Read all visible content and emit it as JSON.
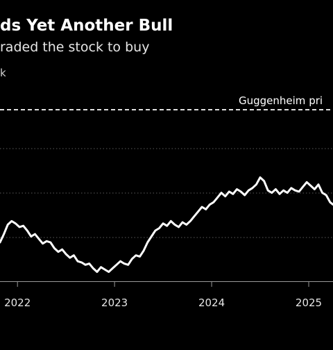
{
  "header": {
    "title": "ds Yet Another Bull",
    "subtitle": "raded the stock to buy",
    "unit": "k"
  },
  "chart_data": {
    "type": "line",
    "title": "ds Yet Another Bull",
    "subtitle": "raded the stock to buy",
    "xlabel": "",
    "ylabel": "",
    "x_ticks": [
      "2022",
      "2023",
      "2024",
      "2025"
    ],
    "xlim": [
      2021.82,
      2025.25
    ],
    "grid": true,
    "legend": "none",
    "series": [
      {
        "color": "#ffffff",
        "points": [
          [
            2021.82,
            0.3
          ],
          [
            2021.86,
            0.37
          ],
          [
            2021.9,
            0.45
          ],
          [
            2021.94,
            0.48
          ],
          [
            2021.98,
            0.46
          ],
          [
            2022.02,
            0.43
          ],
          [
            2022.06,
            0.44
          ],
          [
            2022.1,
            0.4
          ],
          [
            2022.14,
            0.35
          ],
          [
            2022.18,
            0.37
          ],
          [
            2022.22,
            0.33
          ],
          [
            2022.26,
            0.29
          ],
          [
            2022.3,
            0.31
          ],
          [
            2022.34,
            0.3
          ],
          [
            2022.38,
            0.25
          ],
          [
            2022.42,
            0.22
          ],
          [
            2022.46,
            0.24
          ],
          [
            2022.5,
            0.2
          ],
          [
            2022.54,
            0.17
          ],
          [
            2022.58,
            0.19
          ],
          [
            2022.62,
            0.14
          ],
          [
            2022.66,
            0.13
          ],
          [
            2022.7,
            0.11
          ],
          [
            2022.74,
            0.12
          ],
          [
            2022.78,
            0.08
          ],
          [
            2022.82,
            0.05
          ],
          [
            2022.86,
            0.09
          ],
          [
            2022.9,
            0.07
          ],
          [
            2022.94,
            0.05
          ],
          [
            2022.98,
            0.08
          ],
          [
            2023.02,
            0.11
          ],
          [
            2023.06,
            0.14
          ],
          [
            2023.1,
            0.12
          ],
          [
            2023.14,
            0.11
          ],
          [
            2023.18,
            0.16
          ],
          [
            2023.22,
            0.19
          ],
          [
            2023.26,
            0.18
          ],
          [
            2023.3,
            0.23
          ],
          [
            2023.34,
            0.3
          ],
          [
            2023.38,
            0.35
          ],
          [
            2023.42,
            0.4
          ],
          [
            2023.46,
            0.42
          ],
          [
            2023.5,
            0.46
          ],
          [
            2023.54,
            0.44
          ],
          [
            2023.58,
            0.48
          ],
          [
            2023.62,
            0.45
          ],
          [
            2023.66,
            0.43
          ],
          [
            2023.7,
            0.47
          ],
          [
            2023.74,
            0.45
          ],
          [
            2023.78,
            0.48
          ],
          [
            2023.82,
            0.52
          ],
          [
            2023.86,
            0.56
          ],
          [
            2023.9,
            0.6
          ],
          [
            2023.94,
            0.58
          ],
          [
            2023.98,
            0.62
          ],
          [
            2024.02,
            0.64
          ],
          [
            2024.06,
            0.68
          ],
          [
            2024.1,
            0.72
          ],
          [
            2024.14,
            0.69
          ],
          [
            2024.18,
            0.73
          ],
          [
            2024.22,
            0.71
          ],
          [
            2024.26,
            0.75
          ],
          [
            2024.3,
            0.73
          ],
          [
            2024.34,
            0.7
          ],
          [
            2024.38,
            0.74
          ],
          [
            2024.42,
            0.76
          ],
          [
            2024.46,
            0.79
          ],
          [
            2024.5,
            0.85
          ],
          [
            2024.54,
            0.82
          ],
          [
            2024.58,
            0.74
          ],
          [
            2024.62,
            0.72
          ],
          [
            2024.66,
            0.75
          ],
          [
            2024.7,
            0.71
          ],
          [
            2024.74,
            0.74
          ],
          [
            2024.78,
            0.72
          ],
          [
            2024.82,
            0.76
          ],
          [
            2024.86,
            0.74
          ],
          [
            2024.9,
            0.73
          ],
          [
            2024.94,
            0.77
          ],
          [
            2024.98,
            0.81
          ],
          [
            2025.02,
            0.78
          ],
          [
            2025.06,
            0.75
          ],
          [
            2025.1,
            0.79
          ],
          [
            2025.14,
            0.72
          ],
          [
            2025.18,
            0.7
          ],
          [
            2025.22,
            0.64
          ],
          [
            2025.25,
            0.62
          ]
        ]
      }
    ],
    "annotations": [
      {
        "label": "Guggenheim pri",
        "style": "dashed"
      }
    ]
  }
}
